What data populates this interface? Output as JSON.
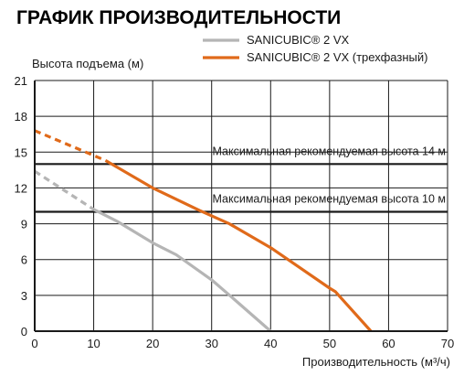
{
  "title": "ГРАФИК ПРОИЗВОДИТЕЛЬНОСТИ",
  "chart_data": {
    "type": "line",
    "title": "ГРАФИК ПРОИЗВОДИТЕЛЬНОСТИ",
    "xlabel": "Производительность (м³/ч)",
    "ylabel": "Высота подъема (м)",
    "xlim": [
      0,
      70
    ],
    "ylim": [
      0,
      21
    ],
    "xticks": [
      "0",
      "10",
      "20",
      "30",
      "40",
      "50",
      "60",
      "70"
    ],
    "yticks": [
      "0",
      "3",
      "6",
      "9",
      "12",
      "15",
      "18",
      "21"
    ],
    "grid": true,
    "legend_position": "top-right",
    "series": [
      {
        "name": "SANICUBIC® 2 VX",
        "color": "#b5b5b5",
        "extrapolated_until_x": 10,
        "points": [
          [
            0,
            13.4
          ],
          [
            10,
            10.2
          ],
          [
            14,
            9.2
          ],
          [
            20,
            7.4
          ],
          [
            24,
            6.4
          ],
          [
            30,
            4.3
          ],
          [
            34,
            2.6
          ],
          [
            40,
            0
          ]
        ]
      },
      {
        "name": "SANICUBIC® 2 VX (трехфазный)",
        "color": "#e06a1a",
        "extrapolated_until_x": 12,
        "points": [
          [
            0,
            16.8
          ],
          [
            12,
            14.3
          ],
          [
            20,
            12.0
          ],
          [
            28,
            10.1
          ],
          [
            33,
            9.0
          ],
          [
            40,
            7.0
          ],
          [
            45,
            5.3
          ],
          [
            50,
            3.6
          ],
          [
            51,
            3.3
          ],
          [
            57,
            0
          ]
        ]
      }
    ],
    "reference_lines": [
      {
        "y": 14,
        "label": "Максимальная рекомендуемая высота 14 м",
        "color": "#1a1a1a"
      },
      {
        "y": 10,
        "label": "Максимальная рекомендуемая высота 10 м",
        "color": "#1a1a1a"
      }
    ]
  }
}
